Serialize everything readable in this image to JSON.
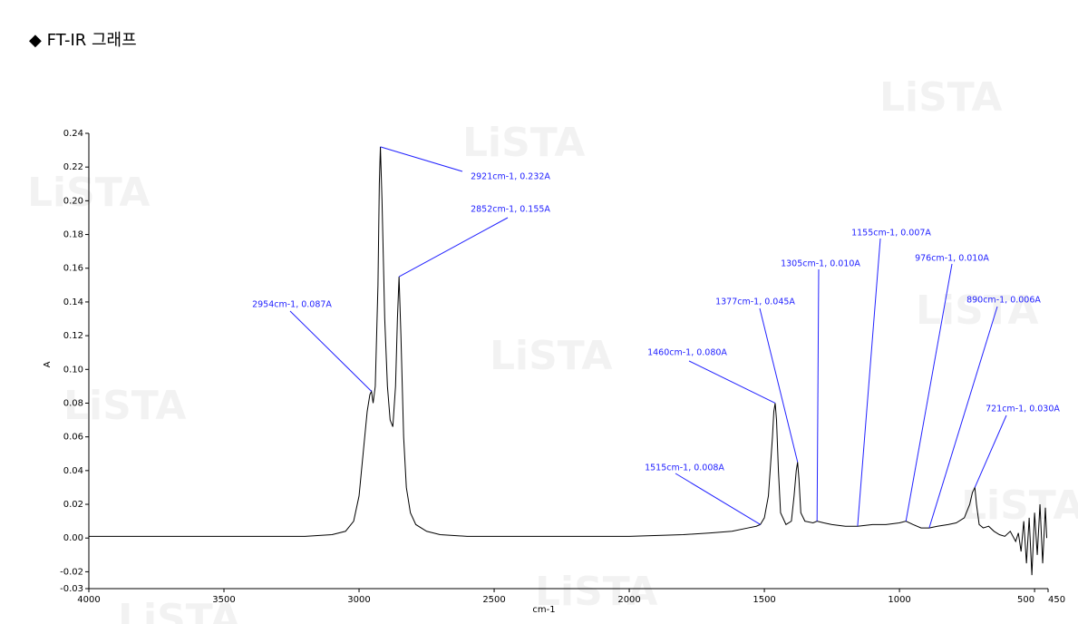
{
  "chart_data": {
    "type": "line",
    "title": "◆ FT-IR 그래프",
    "watermark": "LiSTA",
    "x_label": "cm-1",
    "y_label": "A",
    "xlim": [
      4000,
      450
    ],
    "xticks": [
      4000,
      3500,
      3000,
      2500,
      2000,
      1500,
      1000,
      500,
      450
    ],
    "ylim": [
      -0.03,
      0.24
    ],
    "yticks": [
      -0.03,
      -0.02,
      {
        "value": 0,
        "label": "0.00"
      },
      0.02,
      0.04,
      0.06,
      0.08,
      {
        "value": 0.1,
        "label": "0.10"
      },
      0.12,
      0.14,
      0.16,
      0.18,
      {
        "value": 0.2,
        "label": "0.20"
      },
      0.22,
      0.24
    ],
    "grid": false,
    "series": [
      {
        "color": "#000000",
        "x": [
          4000,
          3800,
          3600,
          3400,
          3200,
          3100,
          3050,
          3020,
          3000,
          2985,
          2970,
          2960,
          2954,
          2948,
          2940,
          2930,
          2925,
          2921,
          2915,
          2905,
          2895,
          2885,
          2875,
          2865,
          2858,
          2852,
          2845,
          2835,
          2825,
          2810,
          2790,
          2750,
          2700,
          2600,
          2400,
          2200,
          2000,
          1800,
          1700,
          1620,
          1560,
          1530,
          1515,
          1500,
          1485,
          1470,
          1465,
          1460,
          1455,
          1448,
          1440,
          1420,
          1400,
          1390,
          1382,
          1377,
          1372,
          1365,
          1350,
          1320,
          1305,
          1280,
          1250,
          1200,
          1155,
          1100,
          1050,
          1000,
          976,
          950,
          920,
          890,
          860,
          820,
          790,
          760,
          740,
          730,
          721,
          715,
          705,
          690,
          670,
          650,
          630,
          610,
          590,
          570,
          560,
          550,
          540,
          530,
          520,
          510,
          500,
          490,
          480,
          470,
          460,
          455
        ],
        "values": [
          0.001,
          0.001,
          0.001,
          0.001,
          0.001,
          0.002,
          0.004,
          0.01,
          0.025,
          0.05,
          0.075,
          0.085,
          0.087,
          0.08,
          0.09,
          0.15,
          0.21,
          0.232,
          0.2,
          0.13,
          0.09,
          0.07,
          0.066,
          0.09,
          0.13,
          0.155,
          0.12,
          0.06,
          0.03,
          0.015,
          0.008,
          0.004,
          0.002,
          0.001,
          0.001,
          0.001,
          0.001,
          0.002,
          0.003,
          0.004,
          0.006,
          0.007,
          0.008,
          0.012,
          0.025,
          0.06,
          0.075,
          0.08,
          0.07,
          0.04,
          0.015,
          0.008,
          0.01,
          0.025,
          0.04,
          0.045,
          0.035,
          0.015,
          0.01,
          0.009,
          0.01,
          0.009,
          0.008,
          0.007,
          0.007,
          0.008,
          0.008,
          0.009,
          0.01,
          0.008,
          0.006,
          0.006,
          0.007,
          0.008,
          0.009,
          0.012,
          0.02,
          0.027,
          0.03,
          0.02,
          0.008,
          0.006,
          0.007,
          0.004,
          0.002,
          0.001,
          0.004,
          -0.002,
          0.003,
          -0.008,
          0.01,
          -0.015,
          0.012,
          -0.022,
          0.015,
          -0.01,
          0.02,
          -0.015,
          0.018,
          0
        ]
      }
    ],
    "annotations": [
      {
        "label": "2921cm-1, 0.232A",
        "x": 2921,
        "y": 0.232
      },
      {
        "label": "2852cm-1, 0.155A",
        "x": 2852,
        "y": 0.155
      },
      {
        "label": "2954cm-1, 0.087A",
        "x": 2954,
        "y": 0.087
      },
      {
        "label": "1460cm-1, 0.080A",
        "x": 1460,
        "y": 0.08
      },
      {
        "label": "1377cm-1, 0.045A",
        "x": 1377,
        "y": 0.045
      },
      {
        "label": "1305cm-1, 0.010A",
        "x": 1305,
        "y": 0.01
      },
      {
        "label": "1155cm-1, 0.007A",
        "x": 1155,
        "y": 0.007
      },
      {
        "label": "976cm-1, 0.010A",
        "x": 976,
        "y": 0.01
      },
      {
        "label": "890cm-1, 0.006A",
        "x": 890,
        "y": 0.006
      },
      {
        "label": "721cm-1, 0.030A",
        "x": 721,
        "y": 0.03
      },
      {
        "label": "1515cm-1, 0.008A",
        "x": 1515,
        "y": 0.008
      }
    ]
  }
}
